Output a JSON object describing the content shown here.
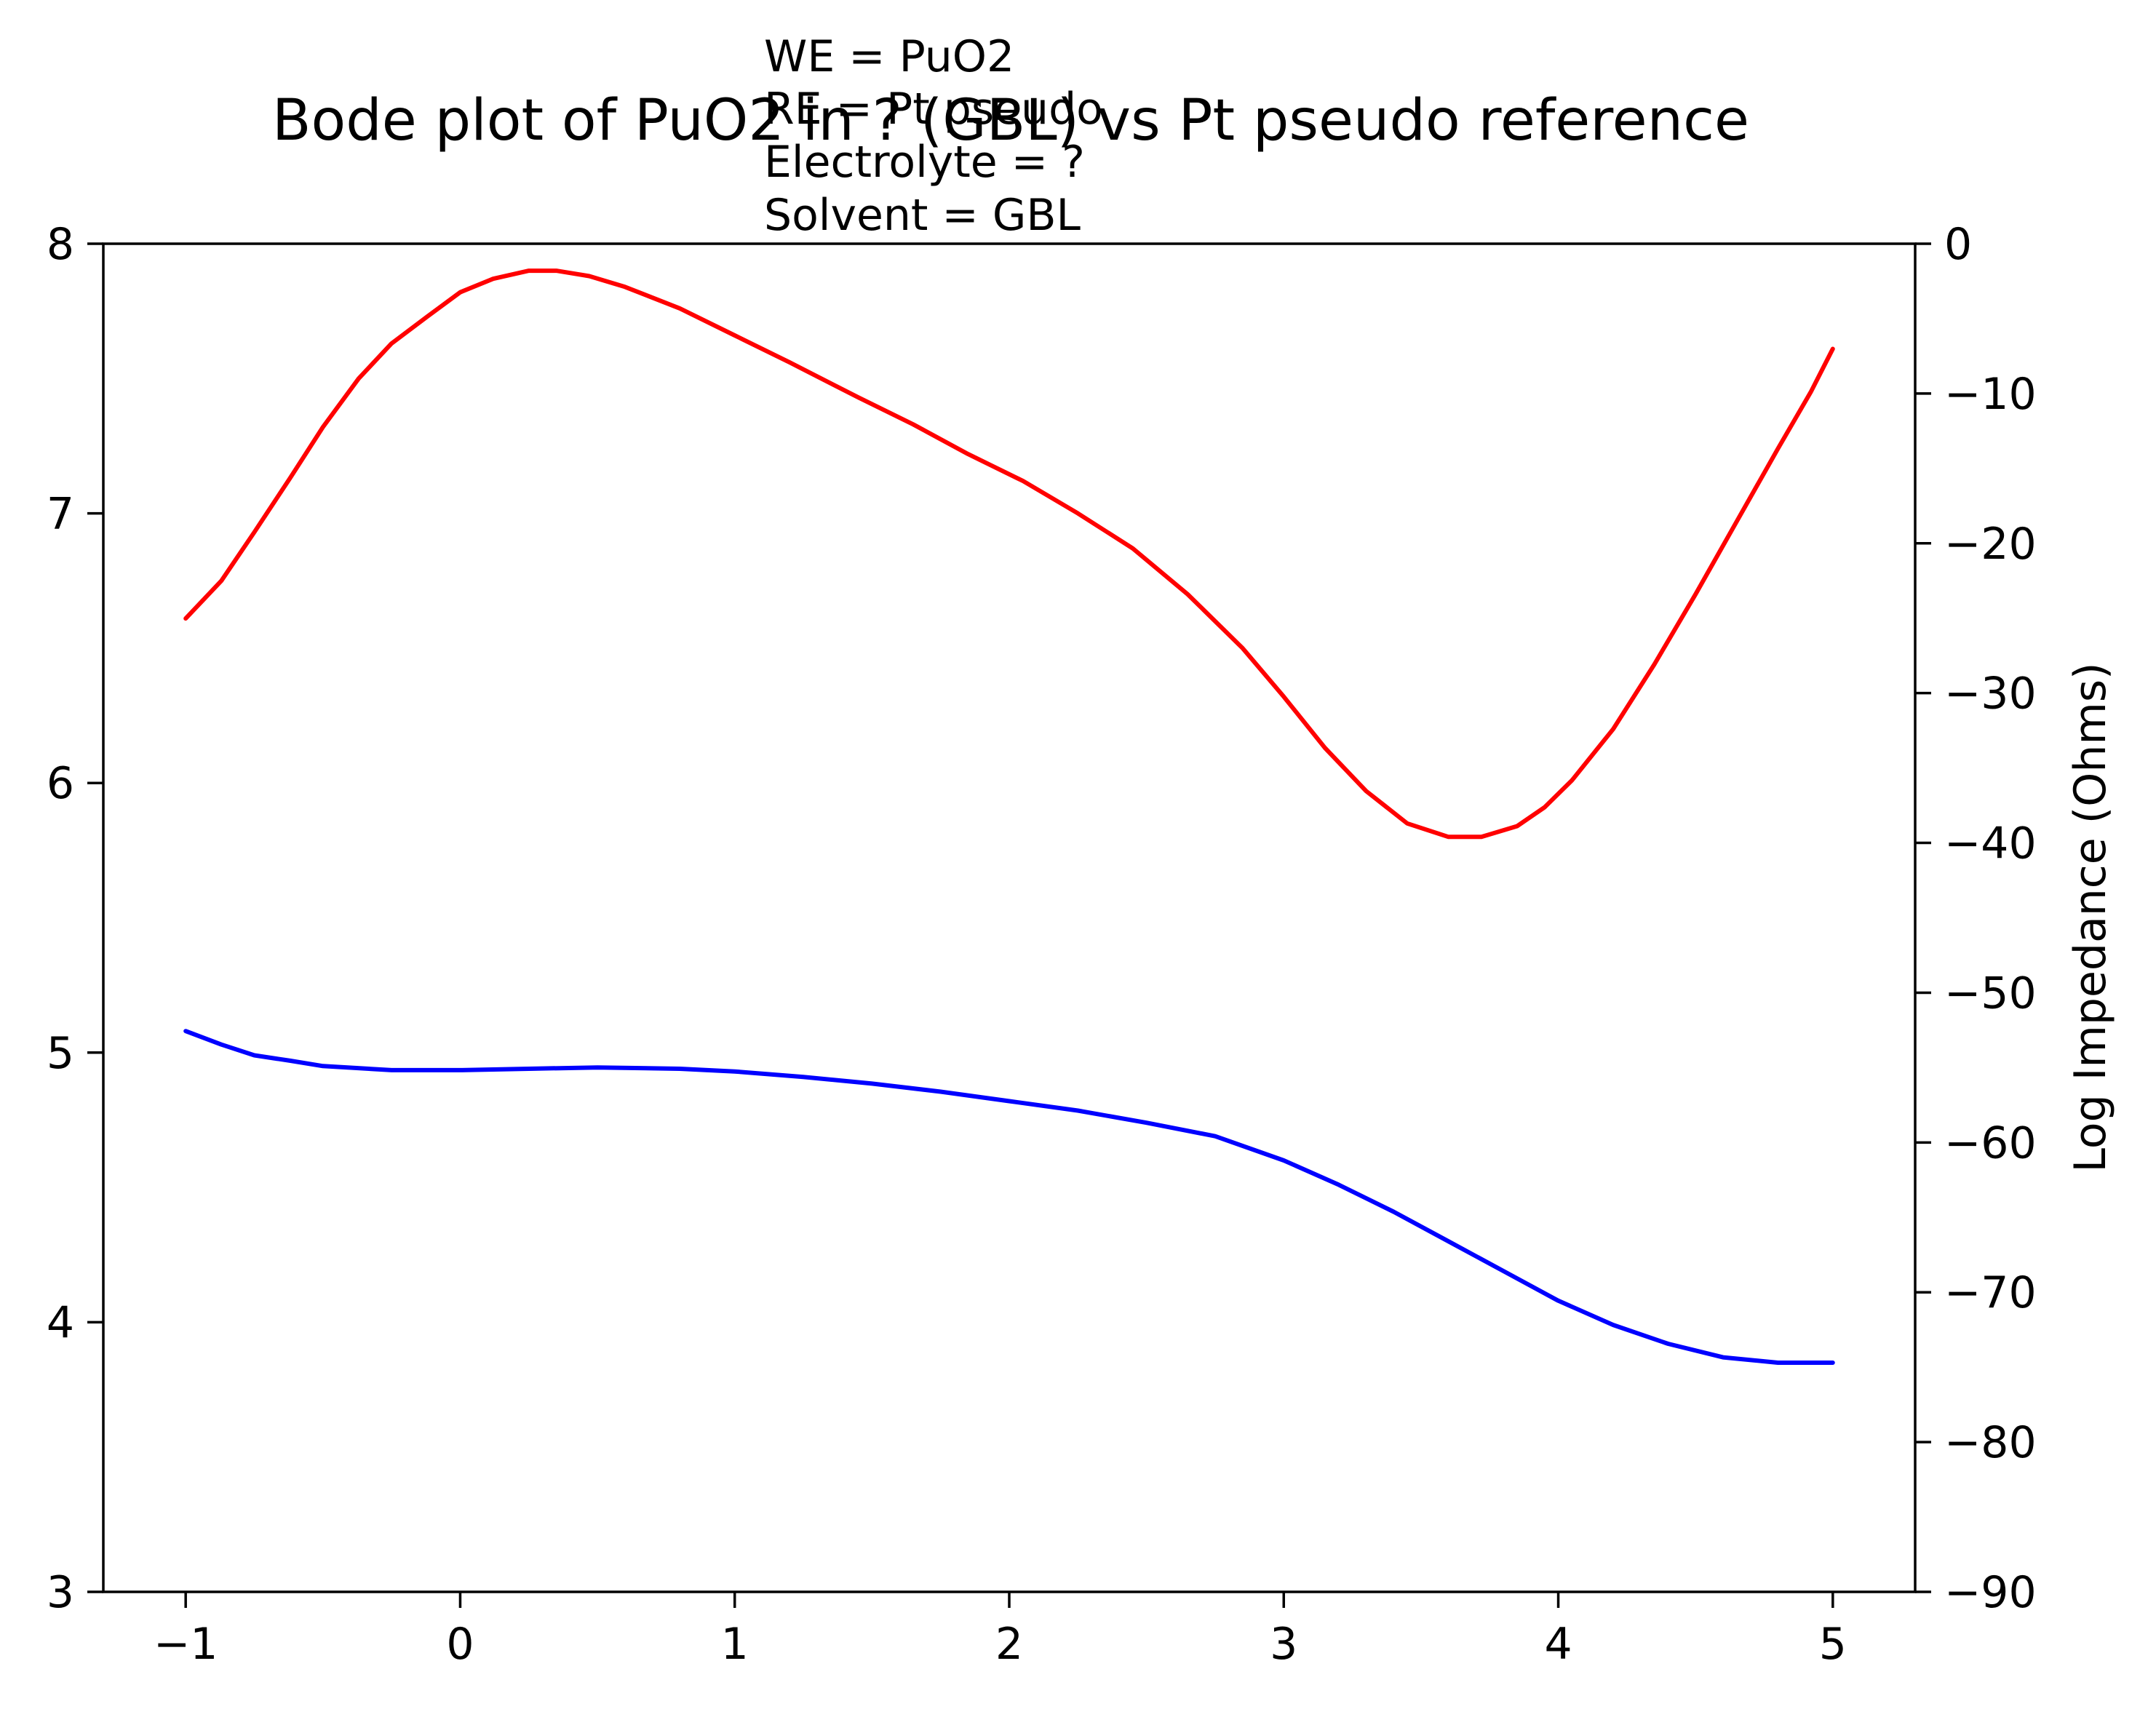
{
  "chart_data": {
    "type": "line",
    "title": "Bode plot of PuO2 in ? (GBL) vs Pt pseudo reference",
    "annotation_lines": [
      "WE = PuO2",
      "RE = Pt pseudo",
      "Electrolyte = ?",
      "Solvent = GBL"
    ],
    "xlabel": "",
    "ylabel_left": "",
    "ylabel_right": "Log Impedance (Ohms)",
    "xlim": [
      -1.3,
      5.3
    ],
    "ylim_left": [
      3,
      8
    ],
    "ylim_right": [
      -90,
      0
    ],
    "x_ticks": [
      "−1",
      "0",
      "1",
      "2",
      "3",
      "4",
      "5"
    ],
    "y_left_ticks": [
      "3",
      "4",
      "5",
      "6",
      "7",
      "8"
    ],
    "y_right_ticks": [
      "−90",
      "−80",
      "−70",
      "−60",
      "−50",
      "−40",
      "−30",
      "−20",
      "−10",
      "0"
    ],
    "grid": false,
    "series": [
      {
        "color": "#ff0000",
        "axis": "left",
        "x": [
          -1.0,
          -0.87,
          -0.75,
          -0.62,
          -0.5,
          -0.37,
          -0.25,
          -0.12,
          0.0,
          0.12,
          0.25,
          0.35,
          0.47,
          0.6,
          0.8,
          1.0,
          1.2,
          1.45,
          1.65,
          1.85,
          2.05,
          2.25,
          2.45,
          2.65,
          2.85,
          3.0,
          3.15,
          3.3,
          3.45,
          3.6,
          3.72,
          3.85,
          3.95,
          4.05,
          4.2,
          4.35,
          4.5,
          4.65,
          4.8,
          4.92,
          5.0
        ],
        "values": [
          6.61,
          6.75,
          6.93,
          7.13,
          7.32,
          7.5,
          7.63,
          7.73,
          7.82,
          7.87,
          7.9,
          7.9,
          7.88,
          7.84,
          7.76,
          7.66,
          7.56,
          7.43,
          7.33,
          7.22,
          7.12,
          7.0,
          6.87,
          6.7,
          6.5,
          6.32,
          6.13,
          5.97,
          5.85,
          5.8,
          5.8,
          5.84,
          5.91,
          6.01,
          6.2,
          6.44,
          6.7,
          6.97,
          7.24,
          7.45,
          7.61
        ]
      },
      {
        "color": "#0000ff",
        "axis": "left",
        "x": [
          -1.0,
          -0.87,
          -0.75,
          -0.62,
          -0.5,
          -0.25,
          0.0,
          0.25,
          0.5,
          0.8,
          1.0,
          1.25,
          1.5,
          1.75,
          2.0,
          2.25,
          2.5,
          2.75,
          3.0,
          3.2,
          3.4,
          3.6,
          3.8,
          4.0,
          4.2,
          4.4,
          4.6,
          4.8,
          5.0
        ],
        "values": [
          5.08,
          5.03,
          4.99,
          4.97,
          4.95,
          4.935,
          4.935,
          4.94,
          4.945,
          4.94,
          4.93,
          4.91,
          4.885,
          4.855,
          4.82,
          4.785,
          4.74,
          4.69,
          4.6,
          4.51,
          4.41,
          4.3,
          4.19,
          4.08,
          3.99,
          3.92,
          3.87,
          3.85,
          3.85
        ]
      }
    ]
  }
}
